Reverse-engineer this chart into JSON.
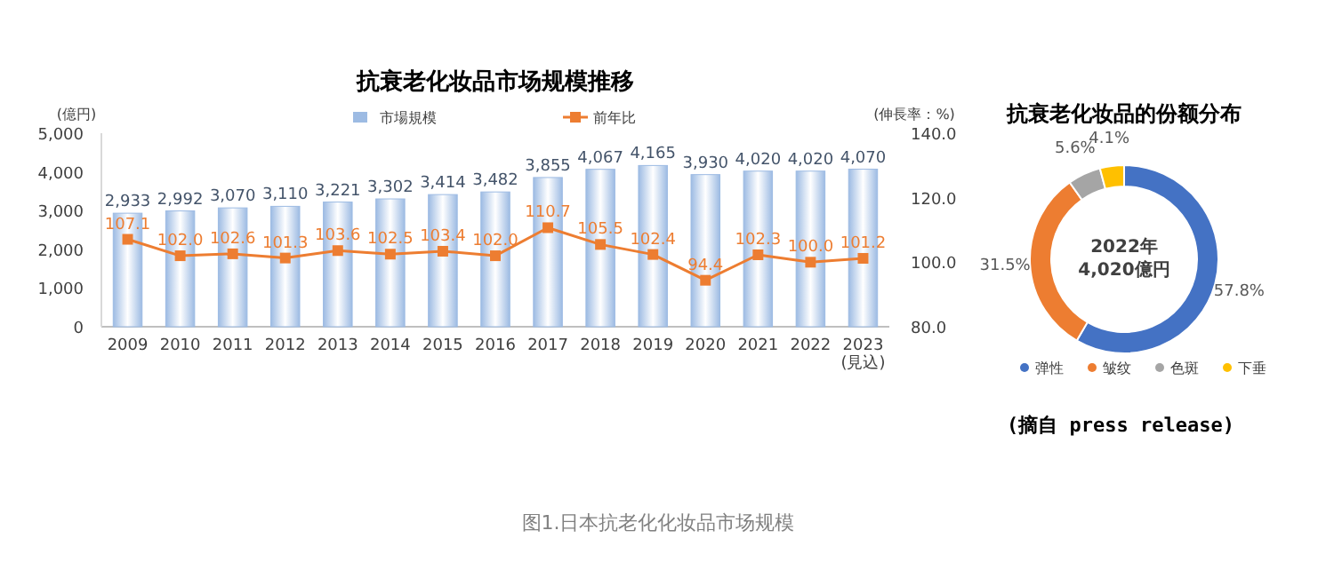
{
  "chart_data": [
    {
      "type": "bar",
      "title": "抗衰老化妆品市场规模推移",
      "ylabel": "(億円)",
      "y2label": "(伸長率：%)",
      "categories": [
        "2009",
        "2010",
        "2011",
        "2012",
        "2013",
        "2014",
        "2015",
        "2016",
        "2017",
        "2018",
        "2019",
        "2020",
        "2021",
        "2022",
        "2023\n(見込)"
      ],
      "series": [
        {
          "name": "市場規模",
          "color": "#9dbbe3",
          "values": [
            2933,
            2992,
            3070,
            3110,
            3221,
            3302,
            3414,
            3482,
            3855,
            4067,
            4165,
            3930,
            4020,
            4020,
            4070
          ],
          "value_labels": [
            "2,933",
            "2,992",
            "3,070",
            "3,110",
            "3,221",
            "3,302",
            "3,414",
            "3,482",
            "3,855",
            "4,067",
            "4,165",
            "3,930",
            "4,020",
            "4,020",
            "4,070"
          ]
        },
        {
          "name": "前年比",
          "type": "line",
          "axis": "y2",
          "color": "#ed7d31",
          "marker": "square",
          "values": [
            107.1,
            102.0,
            102.6,
            101.3,
            103.6,
            102.5,
            103.4,
            102.0,
            110.7,
            105.5,
            102.4,
            94.4,
            102.3,
            100.0,
            101.2
          ],
          "value_labels": [
            "107.1",
            "102.0",
            "102.6",
            "101.3",
            "103.6",
            "102.5",
            "103.4",
            "102.0",
            "110.7",
            "105.5",
            "102.4",
            "94.4",
            "102.3",
            "100.0",
            "101.2"
          ]
        }
      ],
      "ylim": [
        0,
        5000
      ],
      "yticks": [
        0,
        {
          "value": 1000,
          "label": "1,000"
        },
        {
          "value": 2000,
          "label": "2,000"
        },
        {
          "value": 3000,
          "label": "3,000"
        },
        {
          "value": 4000,
          "label": "4,000"
        },
        {
          "value": 5000,
          "label": "5,000"
        }
      ],
      "y2lim": [
        80,
        140
      ],
      "y2ticks": [
        {
          "value": 80,
          "label": "80.0"
        },
        {
          "value": 100,
          "label": "100.0"
        },
        {
          "value": 120,
          "label": "120.0"
        },
        {
          "value": 140,
          "label": "140.0"
        }
      ],
      "legend": "top",
      "grid": false,
      "annotations": [
        "图1.日本抗老化化妆品市场规模"
      ]
    },
    {
      "type": "donut",
      "title": "抗衰老化妆品的份额分布",
      "categories": [
        "弹性",
        "皱纹",
        "色斑",
        "下垂"
      ],
      "values": [
        57.8,
        31.5,
        5.6,
        4.1
      ],
      "value_labels": [
        "57.8%",
        "31.5%",
        "5.6%",
        "4.1%"
      ],
      "colors": [
        "#4472c4",
        "#ed7d31",
        "#a5a5a5",
        "#ffc000"
      ],
      "legend": "bottom",
      "annotations": [
        "2022年\n4,020億円",
        "(摘自 press release)"
      ]
    }
  ]
}
